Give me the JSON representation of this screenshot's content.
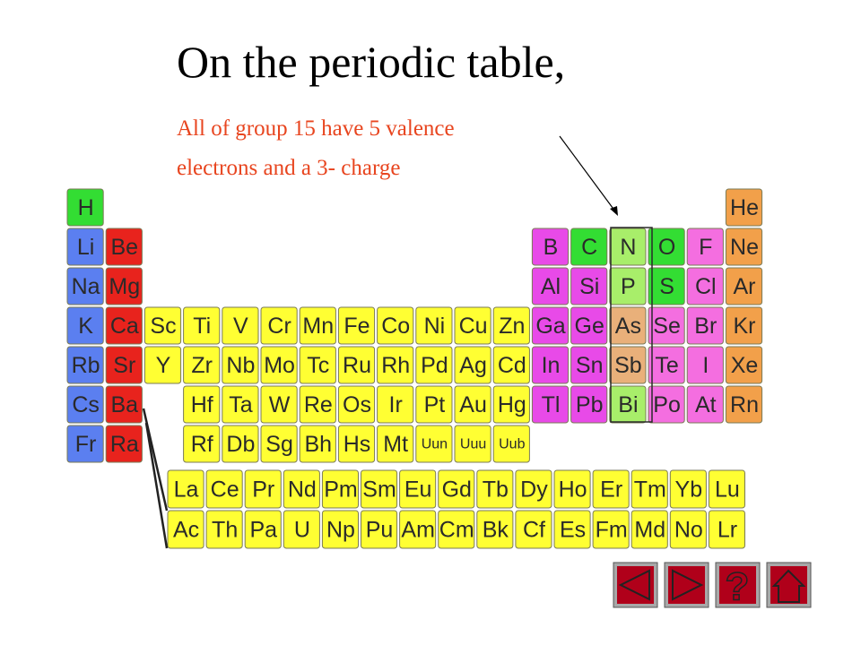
{
  "header": {
    "title": "On the periodic table,",
    "note": [
      "All of group 15 have 5 valence",
      "electrons and a 3- charge"
    ]
  },
  "table": {
    "periods": [
      [
        "H",
        null,
        null,
        null,
        null,
        null,
        null,
        null,
        null,
        null,
        null,
        null,
        null,
        null,
        null,
        null,
        null,
        "He"
      ],
      [
        "Li",
        "Be",
        null,
        null,
        null,
        null,
        null,
        null,
        null,
        null,
        null,
        null,
        "B",
        "C",
        "N",
        "O",
        "F",
        "Ne"
      ],
      [
        "Na",
        "Mg",
        null,
        null,
        null,
        null,
        null,
        null,
        null,
        null,
        null,
        null,
        "Al",
        "Si",
        "P",
        "S",
        "Cl",
        "Ar"
      ],
      [
        "K",
        "Ca",
        "Sc",
        "Ti",
        "V",
        "Cr",
        "Mn",
        "Fe",
        "Co",
        "Ni",
        "Cu",
        "Zn",
        "Ga",
        "Ge",
        "As",
        "Se",
        "Br",
        "Kr"
      ],
      [
        "Rb",
        "Sr",
        "Y",
        "Zr",
        "Nb",
        "Mo",
        "Tc",
        "Ru",
        "Rh",
        "Pd",
        "Ag",
        "Cd",
        "In",
        "Sn",
        "Sb",
        "Te",
        "I",
        "Xe"
      ],
      [
        "Cs",
        "Ba",
        null,
        "Hf",
        "Ta",
        "W",
        "Re",
        "Os",
        "Ir",
        "Pt",
        "Au",
        "Hg",
        "Tl",
        "Pb",
        "Bi",
        "Po",
        "At",
        "Rn"
      ],
      [
        "Fr",
        "Ra",
        null,
        "Rf",
        "Db",
        "Sg",
        "Bh",
        "Hs",
        "Mt",
        "Uun",
        "Uuu",
        "Uub",
        null,
        null,
        null,
        null,
        null,
        null
      ]
    ],
    "lanthanides": [
      "La",
      "Ce",
      "Pr",
      "Nd",
      "Pm",
      "Sm",
      "Eu",
      "Gd",
      "Tb",
      "Dy",
      "Ho",
      "Er",
      "Tm",
      "Yb",
      "Lu"
    ],
    "actinides": [
      "Ac",
      "Th",
      "Pa",
      "U",
      "Np",
      "Pu",
      "Am",
      "Cm",
      "Bk",
      "Cf",
      "Es",
      "Fm",
      "Md",
      "No",
      "Lr"
    ]
  },
  "nav": {
    "help": "?"
  }
}
